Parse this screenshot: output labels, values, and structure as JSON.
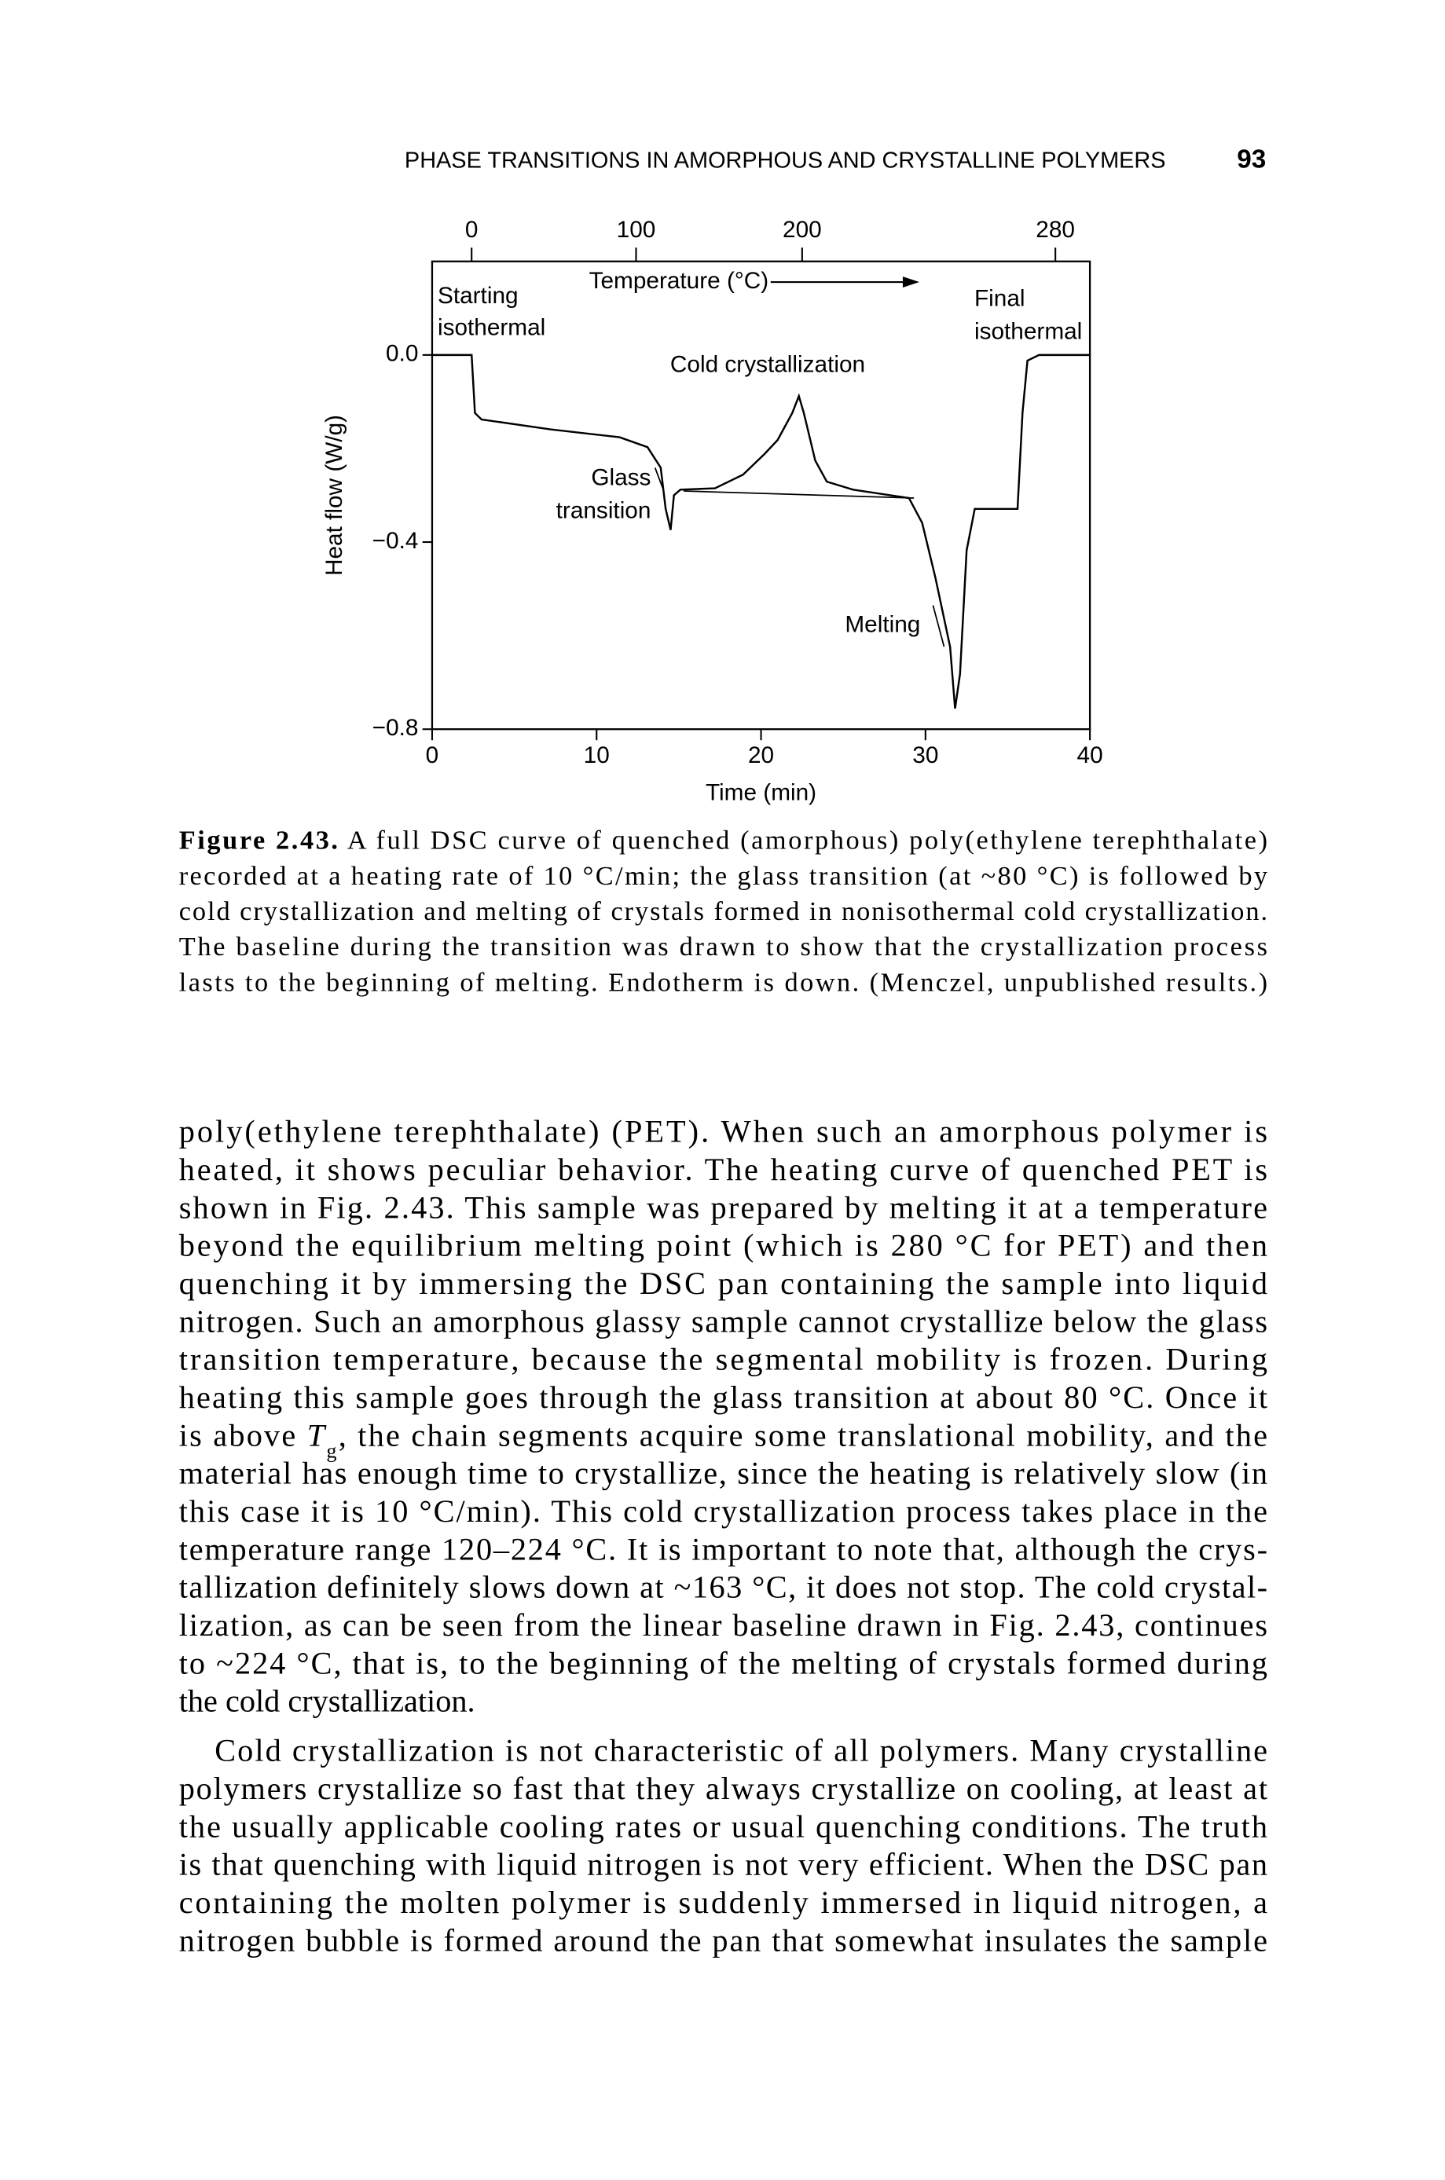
{
  "header": {
    "running_head": "PHASE TRANSITIONS IN AMORPHOUS AND CRYSTALLINE POLYMERS",
    "page_number": "93"
  },
  "chart_data": {
    "type": "line",
    "x_label": "Time (min)",
    "y_label": "Heat flow (W/g)",
    "xlim": [
      0,
      40
    ],
    "xticks": [
      0,
      10,
      20,
      30,
      40
    ],
    "ylim": [
      -0.8,
      0.2
    ],
    "yticks": [
      {
        "value": 0,
        "label": "0.0"
      },
      {
        "value": -0.4,
        "label": "−0.4"
      },
      {
        "value": -0.8,
        "label": "−0.8"
      }
    ],
    "temperature_axis": {
      "label": "Temperature (°C)",
      "ticks": [
        0,
        100,
        200,
        280
      ],
      "tick_times": [
        2.4,
        12.4,
        22.5,
        37.9
      ]
    },
    "series": [
      {
        "color": "#000000",
        "x": [
          0,
          2.4,
          2.6,
          3.0,
          7.2,
          11.4,
          13.1,
          13.9,
          14.2,
          14.5,
          14.7,
          15.1,
          17.2,
          18.9,
          20.2,
          21.0,
          21.9,
          22.3,
          22.6,
          23.3,
          24.0,
          25.6,
          29.0,
          29.8,
          30.6,
          31.5,
          31.8,
          32.1,
          32.5,
          33.0,
          35.6,
          35.9,
          36.2,
          36.9,
          40
        ],
        "values": [
          0,
          0,
          -0.124,
          -0.138,
          -0.159,
          -0.176,
          -0.197,
          -0.241,
          -0.329,
          -0.374,
          -0.3,
          -0.288,
          -0.285,
          -0.256,
          -0.212,
          -0.182,
          -0.124,
          -0.088,
          -0.124,
          -0.226,
          -0.271,
          -0.288,
          -0.306,
          -0.359,
          -0.476,
          -0.624,
          -0.756,
          -0.682,
          -0.418,
          -0.329,
          -0.329,
          -0.124,
          -0.012,
          0,
          0
        ]
      },
      {
        "color": "#000000",
        "x": [
          15.3,
          29.3
        ],
        "values": [
          -0.291,
          -0.306
        ]
      }
    ],
    "annotations": [
      {
        "lines": [
          "Starting",
          "isothermal"
        ]
      },
      {
        "lines": [
          "Final",
          "isothermal"
        ]
      },
      {
        "lines": [
          "Cold crystallization"
        ]
      },
      {
        "lines": [
          "Glass",
          "transition"
        ]
      },
      {
        "lines": [
          "Melting"
        ]
      }
    ]
  },
  "caption": {
    "label": "Figure 2.43.",
    "lines": [
      " A full DSC curve of quenched (amorphous) poly(ethylene terephthalate)",
      "recorded at a heating rate of 10 °C/min; the glass transition (at ~80 °C) is followed by",
      "cold crystallization and melting of crystals formed in nonisothermal cold crystallization.",
      "The baseline during the transition was drawn to show that the crystallization process",
      "lasts to the beginning of melting. Endotherm is down. (Menczel, unpublished results.)"
    ]
  },
  "body": {
    "paragraphs": [
      {
        "lines": [
          "poly(ethylene terephthalate) (PET). When such an amorphous polymer is",
          "heated, it shows peculiar behavior. The heating curve of quenched PET is",
          "shown in Fig. 2.43. This sample was prepared by melting it at a temperature",
          "beyond the equilibrium melting point (which is 280 °C for PET) and then",
          "quenching it by immersing the DSC pan containing the sample into liquid",
          "nitrogen. Such an amorphous glassy sample cannot crystallize below the glass",
          "transition temperature, because the segmental mobility is frozen. During",
          "heating this sample goes through the glass transition at about 80 °C. Once it",
          [
            "is above ",
            "T",
            "g",
            ", the chain segments acquire some translational mobility, and the"
          ],
          "material has enough time to crystallize, since the heating is relatively slow (in",
          "this case it is 10 °C/min). This cold crystallization process takes place in the",
          "temperature range 120–224 °C. It is important to note that, although the crys-",
          "tallization definitely slows down at ~163 °C, it does not stop. The cold crystal-",
          "lization, as can be seen from the linear baseline drawn in Fig. 2.43, continues",
          "to ~224 °C, that is, to the beginning of the melting of crystals formed during",
          "the cold crystallization."
        ]
      },
      {
        "lines": [
          "Cold crystallization is not characteristic of all polymers. Many crystalline",
          "polymers crystallize so fast that they always crystallize on cooling, at least at",
          "the usually applicable cooling rates or usual quenching conditions. The truth",
          "is that quenching with liquid nitrogen is not very efficient. When the DSC pan",
          "containing the molten polymer is suddenly immersed in liquid nitrogen, a",
          "nitrogen bubble is formed around the pan that somewhat insulates the sample"
        ]
      }
    ]
  }
}
